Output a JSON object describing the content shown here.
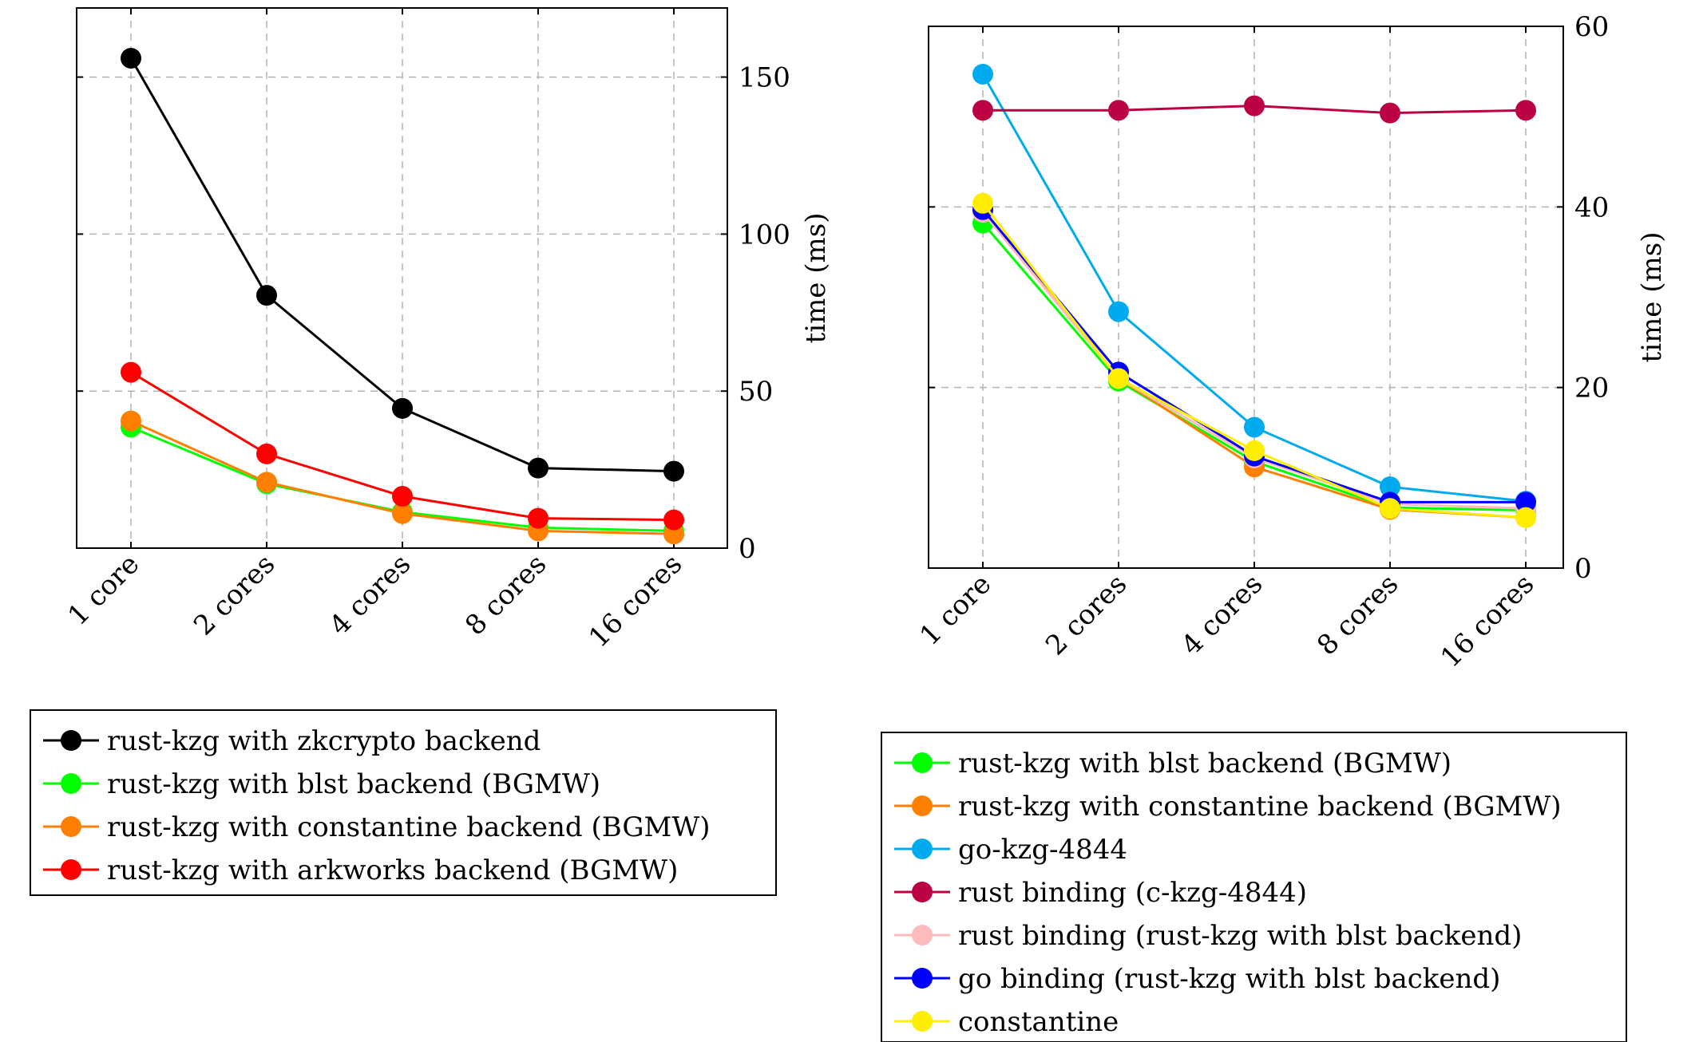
{
  "chart_data": [
    {
      "type": "line",
      "title": "",
      "xlabel": "",
      "ylabel": "time (ms)",
      "categories": [
        "1 core",
        "2 cores",
        "4 cores",
        "8 cores",
        "16 cores"
      ],
      "ylim": [
        0,
        172
      ],
      "yticks": [
        0,
        50,
        100,
        150
      ],
      "grid": true,
      "y_axis_side": "right",
      "series": [
        {
          "name": "rust-kzg with zkcrypto backend",
          "color": "#000000",
          "values": [
            156,
            80.5,
            44.5,
            25.5,
            24.5
          ]
        },
        {
          "name": "rust-kzg with blst backend (BGMW)",
          "color": "#00ff00",
          "values": [
            38.5,
            20.5,
            11.5,
            6.5,
            5.5
          ]
        },
        {
          "name": "rust-kzg with constantine backend (BGMW)",
          "color": "#ff8000",
          "values": [
            40.5,
            21,
            11,
            5.5,
            4.5
          ]
        },
        {
          "name": "rust-kzg with arkworks backend (BGMW)",
          "color": "#ff0000",
          "values": [
            56,
            30,
            16.5,
            9.5,
            9
          ]
        }
      ]
    },
    {
      "type": "line",
      "title": "",
      "xlabel": "",
      "ylabel": "time (ms)",
      "categories": [
        "1 core",
        "2 cores",
        "4 cores",
        "8 cores",
        "16 cores"
      ],
      "ylim": [
        0,
        60
      ],
      "yticks": [
        0,
        20,
        40,
        60
      ],
      "grid": true,
      "y_axis_side": "right",
      "series": [
        {
          "name": "rust-kzg with blst backend (BGMW)",
          "color": "#00ff00",
          "values": [
            38.2,
            20.7,
            11.8,
            6.7,
            6.4
          ]
        },
        {
          "name": "rust-kzg with constantine backend (BGMW)",
          "color": "#ff8000",
          "values": [
            39.5,
            21,
            11.2,
            6.5,
            5.6
          ]
        },
        {
          "name": "go-kzg-4844",
          "color": "#00aaee",
          "values": [
            54.7,
            28.4,
            15.6,
            9,
            7.4
          ]
        },
        {
          "name": "rust binding (c-kzg-4844)",
          "color": "#bb0044",
          "values": [
            50.7,
            50.7,
            51.2,
            50.4,
            50.7
          ]
        },
        {
          "name": "rust binding (rust-kzg with blst backend)",
          "color": "#ffbbbb",
          "values": [
            39.4,
            21,
            12.2,
            7.1,
            6.6
          ]
        },
        {
          "name": "go binding (rust-kzg with blst backend)",
          "color": "#0000ff",
          "values": [
            39.7,
            21.7,
            12.4,
            7.3,
            7.3
          ]
        },
        {
          "name": "constantine",
          "color": "#ffee00",
          "values": [
            40.4,
            21,
            13,
            6.6,
            5.6
          ]
        }
      ]
    }
  ]
}
